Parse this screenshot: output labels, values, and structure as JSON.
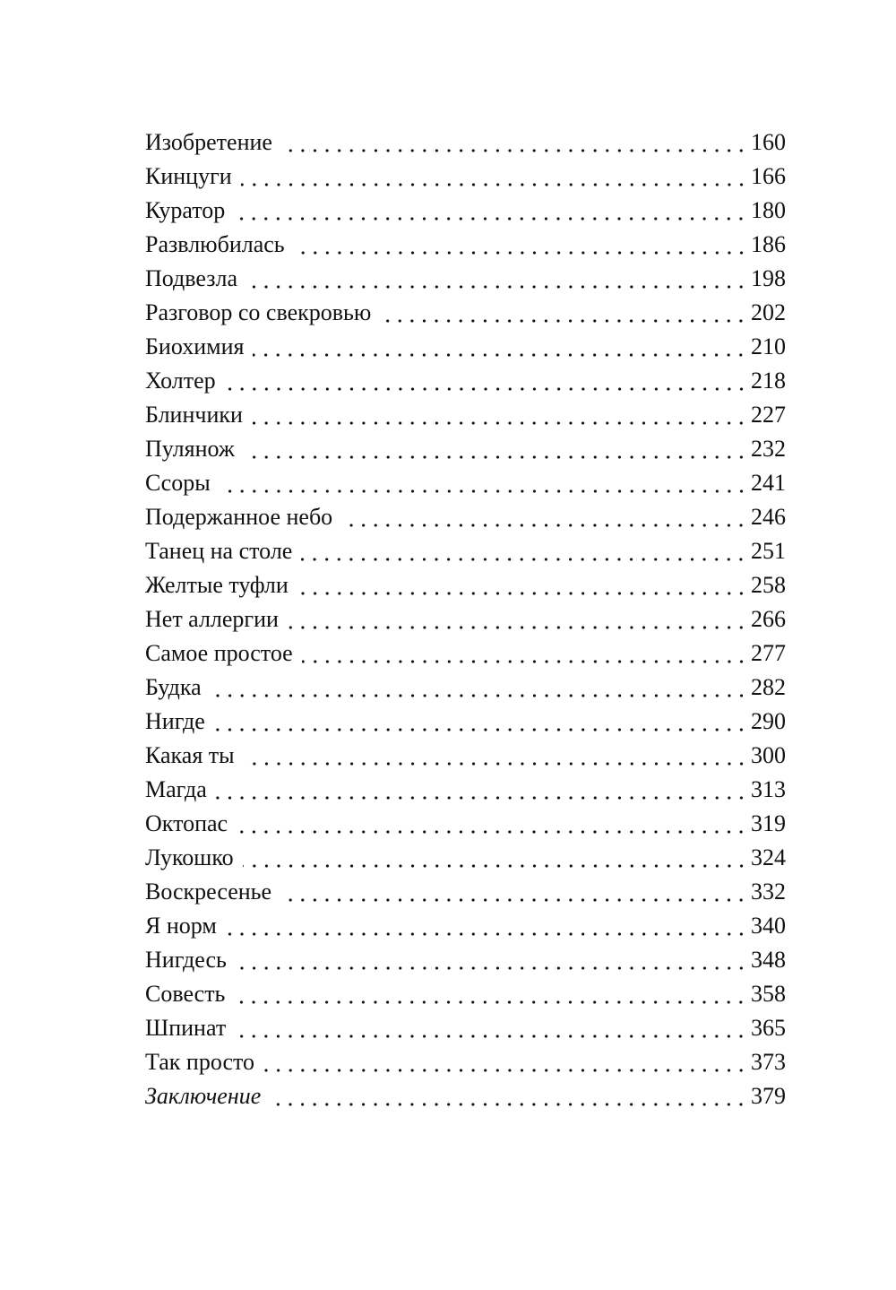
{
  "toc": [
    {
      "title": "Изобретение",
      "page": "160"
    },
    {
      "title": "Кинцуги",
      "page": "166"
    },
    {
      "title": "Куратор",
      "page": "180"
    },
    {
      "title": "Развлюбилась",
      "page": "186"
    },
    {
      "title": "Подвезла",
      "page": "198"
    },
    {
      "title": "Разговор со свекровью",
      "page": "202"
    },
    {
      "title": "Биохимия",
      "page": "210"
    },
    {
      "title": "Холтер",
      "page": "218"
    },
    {
      "title": "Блинчики",
      "page": "227"
    },
    {
      "title": "Пулянож",
      "page": "232"
    },
    {
      "title": "Ссоры",
      "page": "241"
    },
    {
      "title": "Подержанное небо",
      "page": "246"
    },
    {
      "title": "Танец на столе",
      "page": "251"
    },
    {
      "title": "Желтые туфли",
      "page": "258"
    },
    {
      "title": "Нет аллергии",
      "page": "266"
    },
    {
      "title": "Самое простое",
      "page": "277"
    },
    {
      "title": "Будка",
      "page": "282"
    },
    {
      "title": "Нигде",
      "page": "290"
    },
    {
      "title": "Какая ты",
      "page": "300"
    },
    {
      "title": "Магда",
      "page": "313"
    },
    {
      "title": "Октопас",
      "page": "319"
    },
    {
      "title": "Лукошко",
      "page": "324"
    },
    {
      "title": "Воскресенье",
      "page": "332"
    },
    {
      "title": "Я норм",
      "page": "340"
    },
    {
      "title": "Нигдесь",
      "page": "348"
    },
    {
      "title": "Совесть",
      "page": "358"
    },
    {
      "title": "Шпинат",
      "page": "365"
    },
    {
      "title": "Так просто",
      "page": "373"
    },
    {
      "title": "Заключение",
      "page": "379",
      "italic": true
    }
  ]
}
